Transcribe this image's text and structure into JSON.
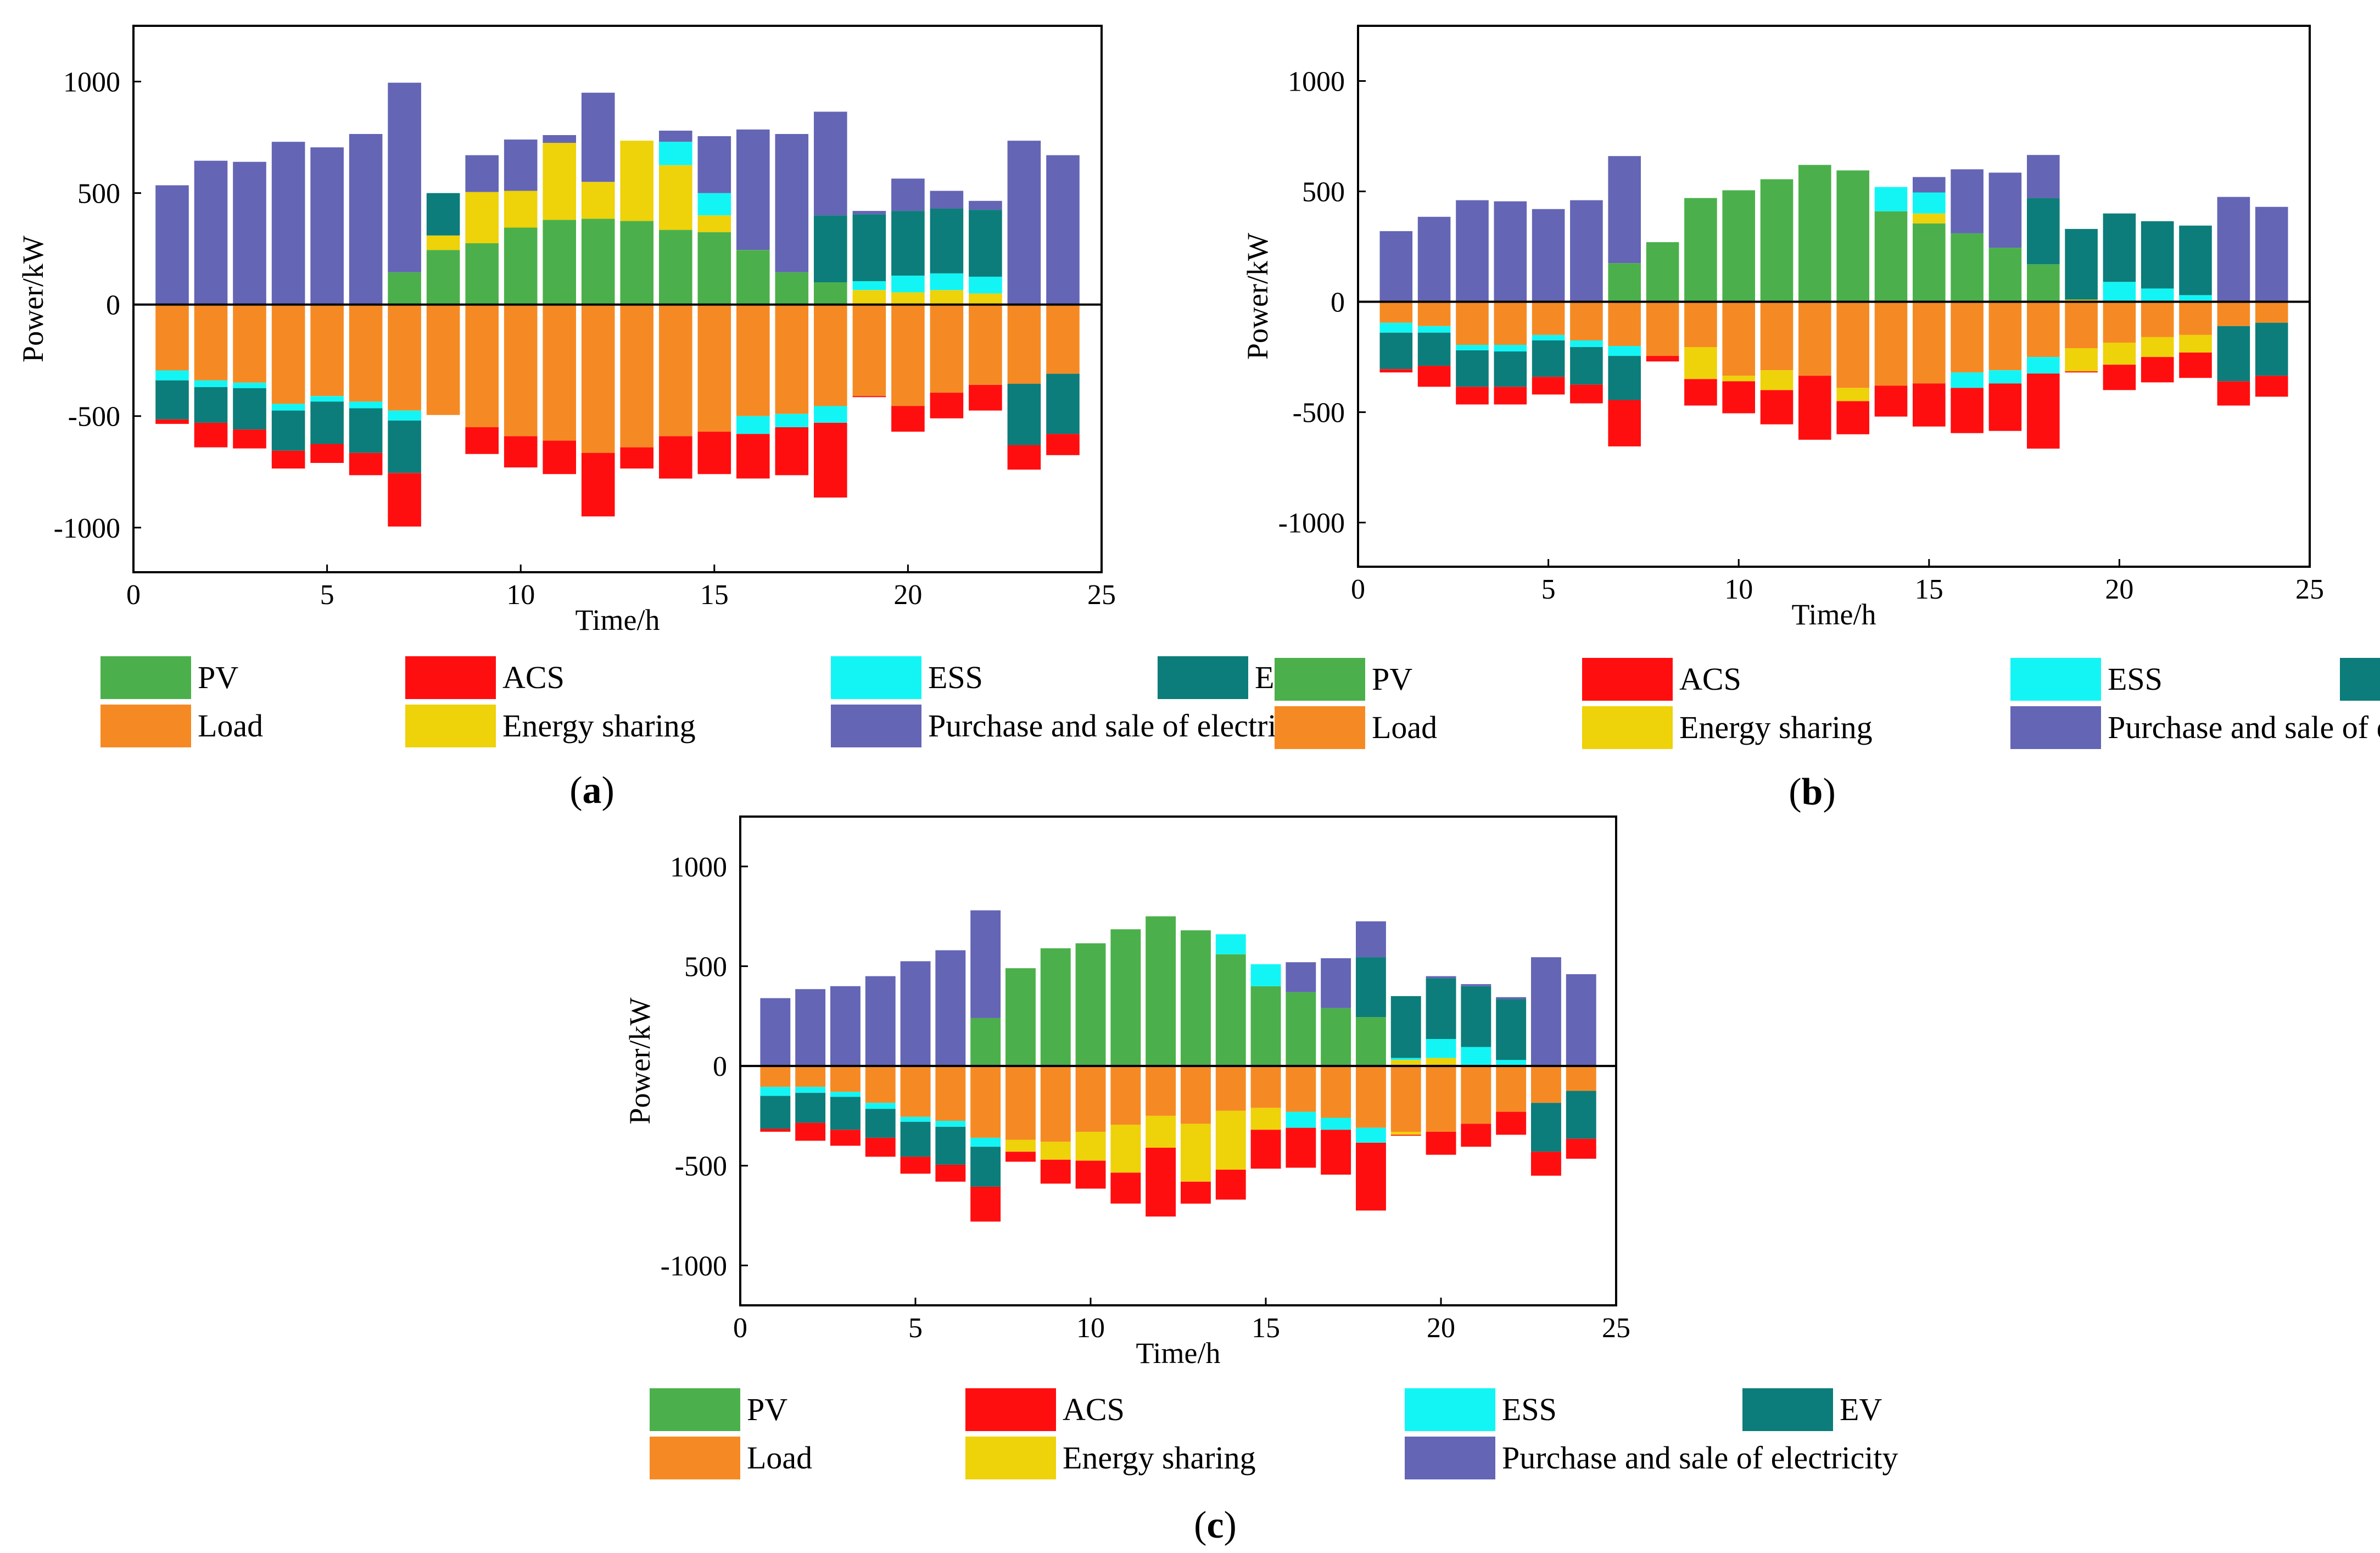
{
  "legend": [
    {
      "key": "pv",
      "label": "PV",
      "color": "#4bb04b"
    },
    {
      "key": "acs",
      "label": "ACS",
      "color": "#ff0e10"
    },
    {
      "key": "ess",
      "label": "ESS",
      "color": "#13f5f5"
    },
    {
      "key": "ev",
      "label": "EV",
      "color": "#0c7d7a"
    },
    {
      "key": "load",
      "label": "Load",
      "color": "#f58a24"
    },
    {
      "key": "share",
      "label": "Energy sharing",
      "color": "#eed20a"
    },
    {
      "key": "grid",
      "label": "Purchase and sale of electricity",
      "color": "#6465b5"
    }
  ],
  "chart_data": [
    {
      "id": "a",
      "caption_letter": "a",
      "type": "stacked-bar",
      "xlabel": "Time/h",
      "ylabel": "Power/kW",
      "xlim": [
        0,
        25
      ],
      "ylim": [
        -1200,
        1250
      ],
      "xticks": [
        0,
        5,
        10,
        15,
        20,
        25
      ],
      "yticks": [
        -1000,
        -500,
        0,
        500,
        1000
      ],
      "hours": [
        1,
        2,
        3,
        4,
        5,
        6,
        7,
        8,
        9,
        10,
        11,
        12,
        13,
        14,
        15,
        16,
        17,
        18,
        19,
        20,
        21,
        22,
        23,
        24
      ],
      "series": [
        {
          "key": "pv",
          "values": [
            0,
            0,
            0,
            0,
            0,
            0,
            145,
            245,
            275,
            345,
            380,
            385,
            375,
            335,
            325,
            245,
            145,
            100,
            0,
            0,
            0,
            0,
            0,
            0
          ]
        },
        {
          "key": "share",
          "values": [
            0,
            0,
            0,
            0,
            0,
            0,
            0,
            65,
            230,
            165,
            345,
            165,
            360,
            290,
            75,
            0,
            0,
            0,
            65,
            55,
            65,
            50,
            0,
            0
          ]
        },
        {
          "key": "ess",
          "values": [
            0,
            0,
            0,
            0,
            0,
            0,
            0,
            0,
            0,
            0,
            0,
            0,
            0,
            105,
            100,
            0,
            0,
            0,
            40,
            75,
            75,
            75,
            0,
            0
          ]
        },
        {
          "key": "ev",
          "values": [
            0,
            0,
            0,
            0,
            0,
            0,
            0,
            190,
            0,
            0,
            0,
            0,
            0,
            0,
            0,
            0,
            0,
            300,
            300,
            290,
            290,
            300,
            0,
            0
          ]
        },
        {
          "key": "grid",
          "values": [
            535,
            645,
            640,
            730,
            705,
            765,
            850,
            0,
            165,
            230,
            35,
            400,
            0,
            50,
            255,
            540,
            620,
            465,
            15,
            145,
            80,
            40,
            735,
            670
          ]
        },
        {
          "key": "load",
          "values": [
            -295,
            -340,
            -350,
            -445,
            -410,
            -435,
            -475,
            -495,
            -550,
            -590,
            -610,
            -665,
            -640,
            -590,
            -570,
            -500,
            -490,
            -455,
            -410,
            -455,
            -395,
            -360,
            -355,
            -310
          ]
        },
        {
          "key": "ess",
          "values": [
            -45,
            -30,
            -25,
            -30,
            -25,
            -30,
            -45,
            0,
            0,
            0,
            0,
            0,
            0,
            0,
            0,
            -80,
            -60,
            -75,
            0,
            0,
            0,
            0,
            0,
            0
          ]
        },
        {
          "key": "ev",
          "values": [
            -175,
            -160,
            -185,
            -180,
            -190,
            -200,
            -235,
            0,
            0,
            0,
            0,
            0,
            0,
            0,
            0,
            0,
            0,
            0,
            0,
            0,
            0,
            0,
            -275,
            -270
          ]
        },
        {
          "key": "acs",
          "values": [
            -20,
            -110,
            -85,
            -80,
            -85,
            -100,
            -240,
            0,
            -120,
            -140,
            -150,
            -285,
            -95,
            -190,
            -190,
            -200,
            -215,
            -335,
            -5,
            -115,
            -115,
            -115,
            -110,
            -95
          ]
        }
      ]
    },
    {
      "id": "b",
      "caption_letter": "b",
      "type": "stacked-bar",
      "xlabel": "Time/h",
      "ylabel": "Power/kW",
      "xlim": [
        0,
        25
      ],
      "ylim": [
        -1200,
        1250
      ],
      "xticks": [
        0,
        5,
        10,
        15,
        20,
        25
      ],
      "yticks": [
        -1000,
        -500,
        0,
        500,
        1000
      ],
      "hours": [
        1,
        2,
        3,
        4,
        5,
        6,
        7,
        8,
        9,
        10,
        11,
        12,
        13,
        14,
        15,
        16,
        17,
        18,
        19,
        20,
        21,
        22,
        23,
        24
      ],
      "series": [
        {
          "key": "pv",
          "values": [
            0,
            0,
            0,
            0,
            0,
            0,
            175,
            270,
            470,
            505,
            555,
            620,
            595,
            410,
            355,
            310,
            245,
            170,
            0,
            0,
            0,
            0,
            0,
            0
          ]
        },
        {
          "key": "share",
          "values": [
            0,
            0,
            0,
            0,
            0,
            0,
            0,
            0,
            0,
            0,
            0,
            0,
            0,
            0,
            45,
            0,
            0,
            0,
            10,
            0,
            0,
            0,
            0,
            0
          ]
        },
        {
          "key": "ess",
          "values": [
            0,
            0,
            0,
            0,
            0,
            0,
            0,
            0,
            0,
            0,
            0,
            0,
            0,
            110,
            95,
            0,
            0,
            0,
            0,
            90,
            60,
            30,
            0,
            0
          ]
        },
        {
          "key": "ev",
          "values": [
            0,
            0,
            0,
            0,
            0,
            0,
            0,
            0,
            0,
            0,
            0,
            0,
            0,
            0,
            0,
            0,
            0,
            300,
            320,
            310,
            305,
            315,
            0,
            0
          ]
        },
        {
          "key": "grid",
          "values": [
            320,
            385,
            460,
            455,
            420,
            460,
            485,
            0,
            0,
            0,
            0,
            0,
            0,
            0,
            70,
            290,
            340,
            195,
            0,
            0,
            0,
            0,
            475,
            430
          ]
        },
        {
          "key": "load",
          "values": [
            -95,
            -110,
            -195,
            -195,
            -150,
            -175,
            -200,
            -245,
            -205,
            -335,
            -310,
            -335,
            -390,
            -380,
            -370,
            -320,
            -310,
            -250,
            -210,
            -185,
            -160,
            -150,
            -110,
            -95
          ]
        },
        {
          "key": "share",
          "values": [
            0,
            0,
            0,
            0,
            0,
            0,
            0,
            0,
            -145,
            -25,
            -90,
            0,
            -60,
            0,
            0,
            0,
            0,
            0,
            -105,
            -100,
            -90,
            -80,
            0,
            0
          ]
        },
        {
          "key": "ess",
          "values": [
            -45,
            -30,
            -25,
            -30,
            -25,
            -30,
            -45,
            0,
            0,
            0,
            0,
            0,
            0,
            0,
            0,
            -70,
            -60,
            -75,
            0,
            0,
            0,
            0,
            0,
            0
          ]
        },
        {
          "key": "ev",
          "values": [
            -165,
            -150,
            -165,
            -160,
            -165,
            -170,
            -200,
            0,
            0,
            0,
            0,
            0,
            0,
            0,
            0,
            0,
            0,
            0,
            0,
            0,
            0,
            0,
            -250,
            -240
          ]
        },
        {
          "key": "acs",
          "values": [
            -15,
            -95,
            -80,
            -80,
            -80,
            -85,
            -210,
            -25,
            -120,
            -145,
            -155,
            -290,
            -150,
            -140,
            -195,
            -205,
            -215,
            -340,
            -5,
            -115,
            -115,
            -115,
            -110,
            -95
          ]
        }
      ]
    },
    {
      "id": "c",
      "caption_letter": "c",
      "type": "stacked-bar",
      "xlabel": "Time/h",
      "ylabel": "Power/kW",
      "xlim": [
        0,
        25
      ],
      "ylim": [
        -1200,
        1250
      ],
      "xticks": [
        0,
        5,
        10,
        15,
        20,
        25
      ],
      "yticks": [
        -1000,
        -500,
        0,
        500,
        1000
      ],
      "hours": [
        1,
        2,
        3,
        4,
        5,
        6,
        7,
        8,
        9,
        10,
        11,
        12,
        13,
        14,
        15,
        16,
        17,
        18,
        19,
        20,
        21,
        22,
        23,
        24
      ],
      "series": [
        {
          "key": "pv",
          "values": [
            0,
            0,
            0,
            0,
            0,
            0,
            240,
            490,
            590,
            615,
            685,
            750,
            680,
            560,
            400,
            370,
            290,
            245,
            0,
            0,
            0,
            0,
            0,
            0
          ]
        },
        {
          "key": "share",
          "values": [
            0,
            0,
            0,
            0,
            0,
            0,
            0,
            0,
            0,
            0,
            0,
            0,
            0,
            0,
            0,
            0,
            0,
            0,
            30,
            40,
            0,
            0,
            0,
            0
          ]
        },
        {
          "key": "ess",
          "values": [
            0,
            0,
            0,
            0,
            0,
            0,
            0,
            0,
            0,
            0,
            0,
            0,
            0,
            100,
            110,
            0,
            0,
            0,
            10,
            95,
            95,
            30,
            0,
            0
          ]
        },
        {
          "key": "ev",
          "values": [
            0,
            0,
            0,
            0,
            0,
            0,
            0,
            0,
            0,
            0,
            0,
            0,
            0,
            0,
            0,
            0,
            0,
            300,
            310,
            305,
            305,
            305,
            0,
            0
          ]
        },
        {
          "key": "grid",
          "values": [
            340,
            385,
            400,
            450,
            525,
            580,
            540,
            0,
            0,
            0,
            0,
            0,
            0,
            0,
            0,
            150,
            250,
            180,
            0,
            10,
            10,
            10,
            545,
            460
          ]
        },
        {
          "key": "load",
          "values": [
            -105,
            -105,
            -130,
            -185,
            -255,
            -275,
            -360,
            -370,
            -380,
            -330,
            -295,
            -250,
            -290,
            -225,
            -210,
            -230,
            -260,
            -310,
            -330,
            -330,
            -290,
            -230,
            -185,
            -125
          ]
        },
        {
          "key": "share",
          "values": [
            0,
            0,
            0,
            0,
            0,
            0,
            0,
            -60,
            -90,
            -145,
            -240,
            -160,
            -290,
            -295,
            -110,
            0,
            0,
            0,
            -15,
            0,
            0,
            0,
            0,
            0
          ]
        },
        {
          "key": "ess",
          "values": [
            -45,
            -30,
            -25,
            -30,
            -25,
            -30,
            -45,
            0,
            0,
            0,
            0,
            0,
            0,
            0,
            0,
            -80,
            -60,
            -75,
            0,
            0,
            0,
            0,
            0,
            0
          ]
        },
        {
          "key": "ev",
          "values": [
            -165,
            -150,
            -165,
            -145,
            -175,
            -190,
            -200,
            0,
            0,
            0,
            0,
            0,
            0,
            0,
            0,
            0,
            0,
            0,
            0,
            0,
            0,
            0,
            -245,
            -240
          ]
        },
        {
          "key": "acs",
          "values": [
            -15,
            -90,
            -80,
            -95,
            -85,
            -85,
            -175,
            -50,
            -120,
            -140,
            -155,
            -345,
            -110,
            -150,
            -195,
            -200,
            -225,
            -340,
            -5,
            -115,
            -115,
            -115,
            -120,
            -100
          ]
        }
      ]
    }
  ]
}
